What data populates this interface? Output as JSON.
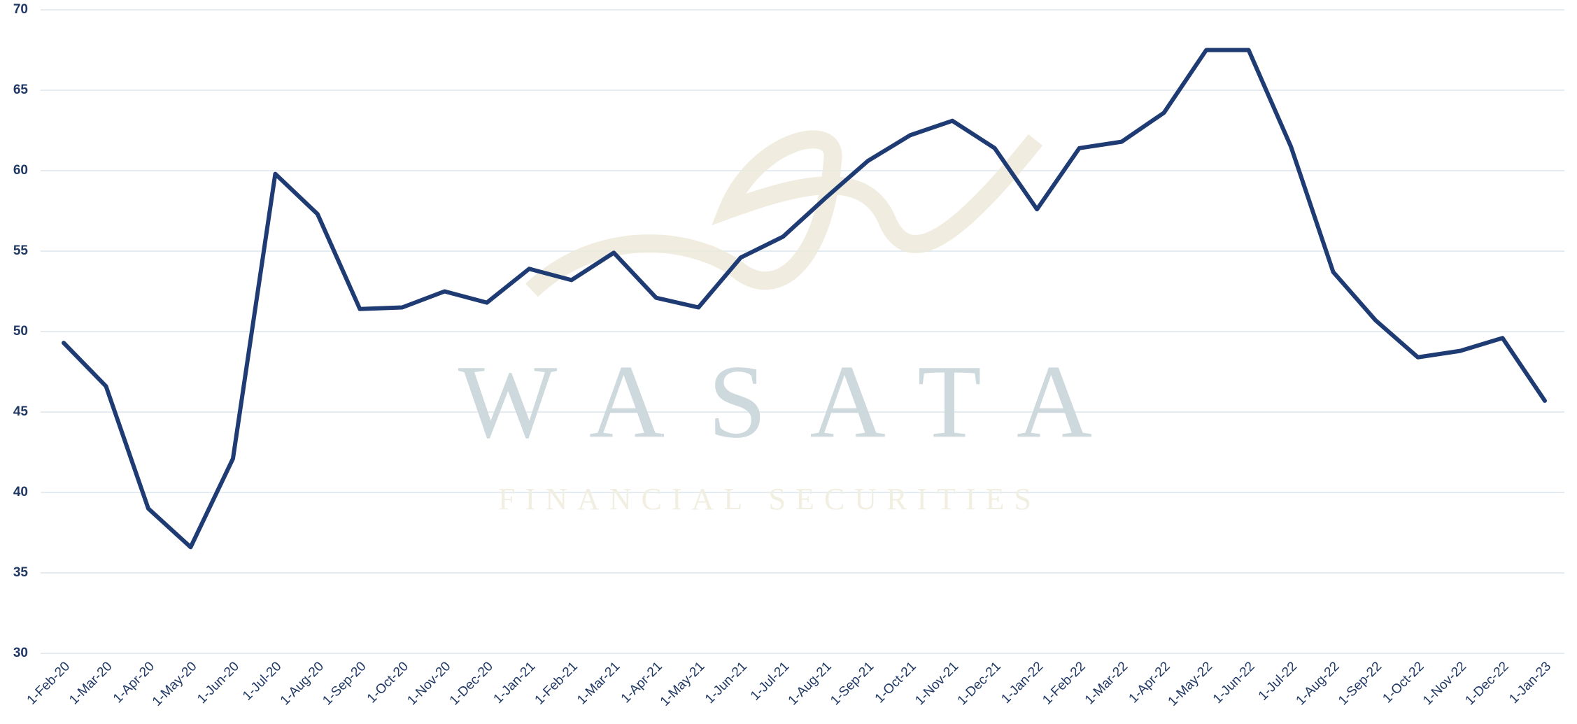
{
  "chart_data": {
    "type": "line",
    "watermark": {
      "title": "WASATA",
      "subtitle": "FINANCIAL SECURITIES"
    },
    "categories": [
      "1-Feb-20",
      "1-Mar-20",
      "1-Apr-20",
      "1-May-20",
      "1-Jun-20",
      "1-Jul-20",
      "1-Aug-20",
      "1-Sep-20",
      "1-Oct-20",
      "1-Nov-20",
      "1-Dec-20",
      "1-Jan-21",
      "1-Feb-21",
      "1-Mar-21",
      "1-Apr-21",
      "1-May-21",
      "1-Jun-21",
      "1-Jul-21",
      "1-Aug-21",
      "1-Sep-21",
      "1-Oct-21",
      "1-Nov-21",
      "1-Dec-21",
      "1-Jan-22",
      "1-Feb-22",
      "1-Mar-22",
      "1-Apr-22",
      "1-May-22",
      "1-Jun-22",
      "1-Jul-22",
      "1-Aug-22",
      "1-Sep-22",
      "1-Oct-22",
      "1-Nov-22",
      "1-Dec-22",
      "1-Jan-23"
    ],
    "values": [
      49.3,
      46.6,
      39.0,
      36.6,
      42.1,
      59.8,
      57.3,
      51.4,
      51.5,
      52.5,
      51.8,
      53.9,
      53.2,
      54.9,
      52.1,
      51.5,
      54.6,
      55.9,
      58.3,
      60.6,
      62.2,
      63.1,
      61.4,
      57.6,
      61.4,
      61.8,
      63.6,
      67.5,
      67.5,
      61.5,
      53.7,
      50.7,
      48.4,
      48.8,
      49.6,
      45.7
    ],
    "color": "#1f3b73",
    "ylim": [
      30,
      70
    ],
    "yticks": [
      30,
      35,
      40,
      45,
      50,
      55,
      60,
      65,
      70
    ],
    "grid": true
  }
}
